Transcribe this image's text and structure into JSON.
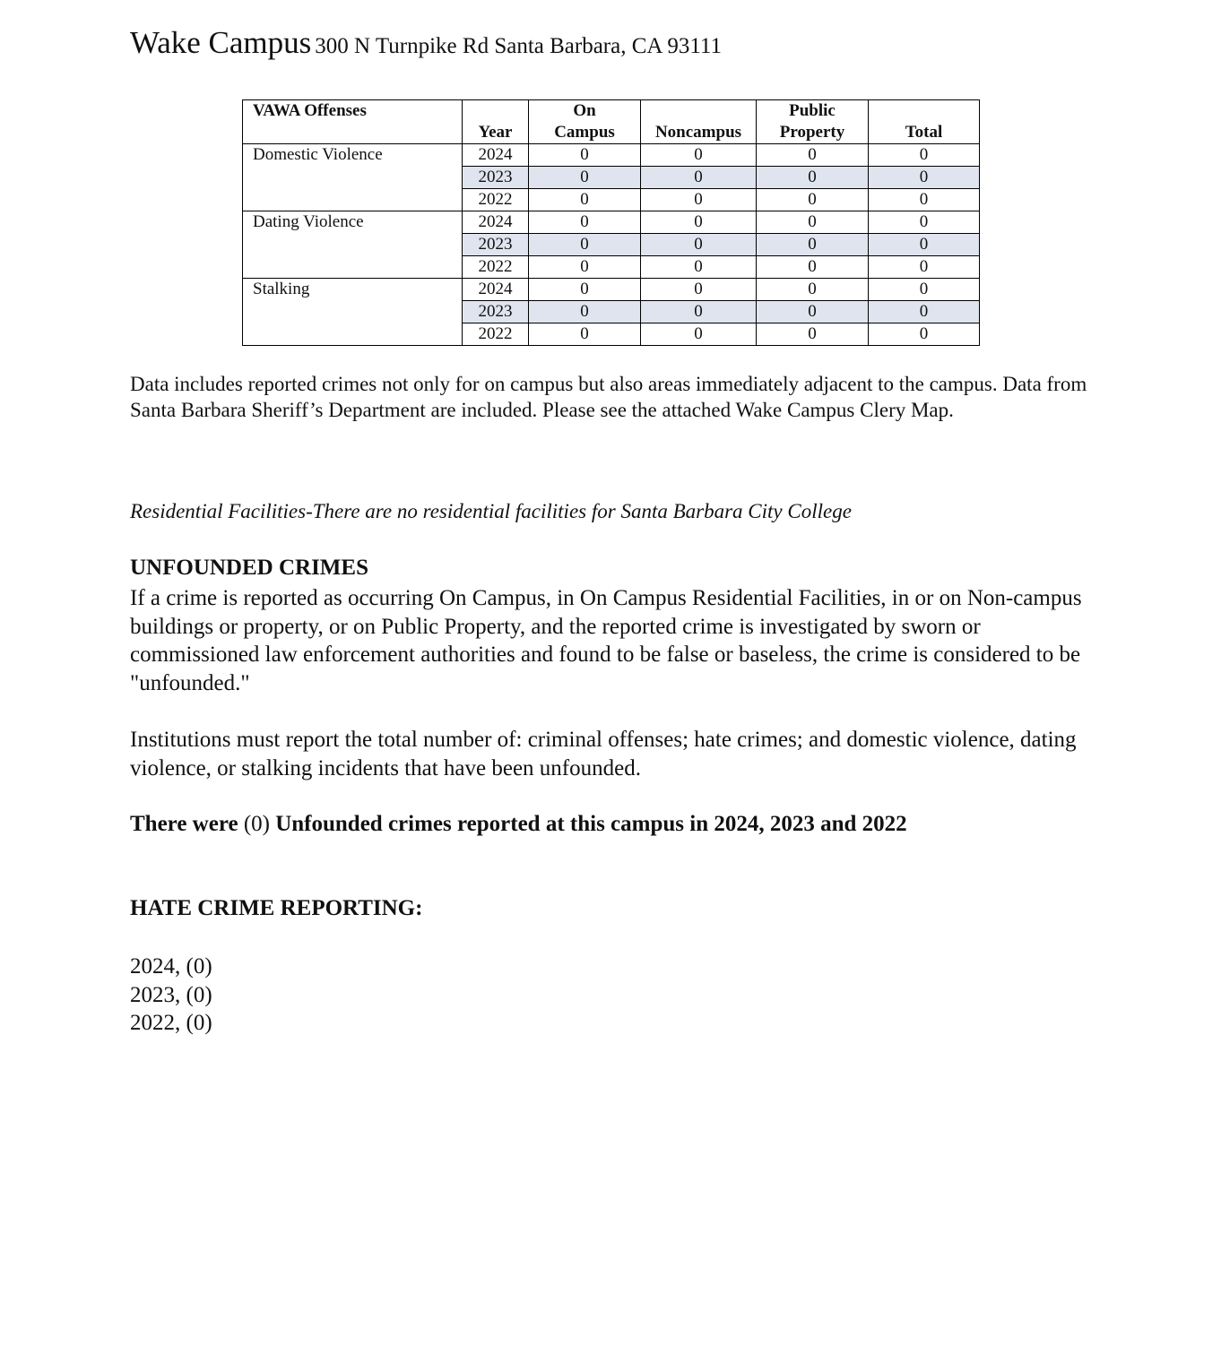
{
  "header": {
    "campus": "Wake Campus",
    "address": "300 N Turnpike Rd Santa Barbara, CA 93111"
  },
  "table": {
    "columns": [
      "VAWA Offenses",
      "Year",
      "On Campus",
      "Noncampus",
      "Public Property",
      "Total"
    ],
    "colors": {
      "shaded_row": "#dfe4ef"
    },
    "groups": [
      {
        "offense": "Domestic Violence",
        "rows": [
          [
            "2024",
            "0",
            "0",
            "0",
            "0"
          ],
          [
            "2023",
            "0",
            "0",
            "0",
            "0"
          ],
          [
            "2022",
            "0",
            "0",
            "0",
            "0"
          ]
        ]
      },
      {
        "offense": "Dating Violence",
        "rows": [
          [
            "2024",
            "0",
            "0",
            "0",
            "0"
          ],
          [
            "2023",
            "0",
            "0",
            "0",
            "0"
          ],
          [
            "2022",
            "0",
            "0",
            "0",
            "0"
          ]
        ]
      },
      {
        "offense": "Stalking",
        "rows": [
          [
            "2024",
            "0",
            "0",
            "0",
            "0"
          ],
          [
            "2023",
            "0",
            "0",
            "0",
            "0"
          ],
          [
            "2022",
            "0",
            "0",
            "0",
            "0"
          ]
        ]
      }
    ]
  },
  "note": "Data includes reported crimes not only for on campus but also areas immediately adjacent to the campus. Data from Santa Barbara Sheriff’s Department are included.  Please see the attached Wake Campus Clery Map.",
  "residential": "Residential Facilities-There are no residential facilities for Santa Barbara City College",
  "unfounded": {
    "heading": "UNFOUNDED CRIMES",
    "p1": "If a crime is reported as occurring On Campus, in On Campus Residential Facilities, in or on Non-campus buildings or property, or on Public Property, and the reported crime is investigated by sworn or commissioned law enforcement authorities and found to be false or baseless, the crime is considered to be \"unfounded.\"",
    "p2": "Institutions must report the total number of: criminal offenses; hate crimes; and domestic violence, dating violence, or stalking incidents that have been unfounded.",
    "statement_a": "There were ",
    "statement_b": "(0)",
    "statement_c": " Unfounded crimes reported at this campus in 2024, 2023 and 2022"
  },
  "hate": {
    "heading": "HATE CRIME REPORTING:",
    "items": [
      "2024, (0)",
      "2023, (0)",
      "2022, (0)"
    ]
  }
}
